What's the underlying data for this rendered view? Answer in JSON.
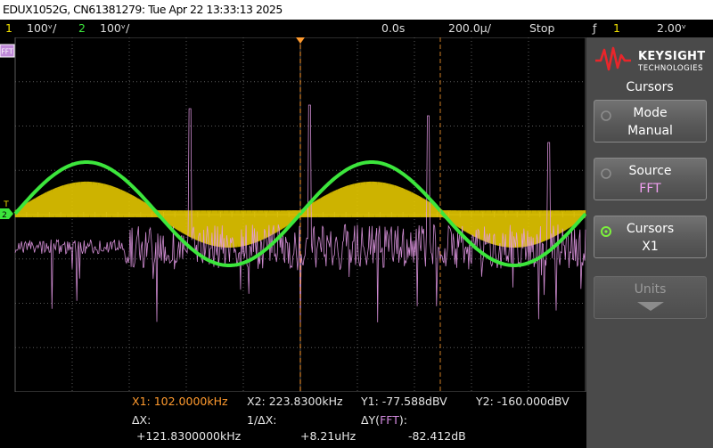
{
  "title": "EDUX1052G, CN61381279: Tue Apr 22 13:33:13 2025",
  "status": {
    "ch1_num": "1",
    "ch1_scale": "100ᵛ/",
    "ch2_num": "2",
    "ch2_scale": "100ᵛ/",
    "time_delay": "0.0s",
    "time_scale": "200.0µ/",
    "run_state": "Stop",
    "trigger_icon": "ƒ",
    "trigger_ch": "1",
    "trigger_level": "2.00ᵛ"
  },
  "screen": {
    "fft_marker": "FFT",
    "ch2_marker": "2",
    "trigger_marker": "T",
    "colors": {
      "ch1": "#e3c600",
      "ch2": "#3ce63c",
      "fft": "#e79be9",
      "cursor": "#ff9a2e",
      "grid": "#5a5a5a"
    }
  },
  "readout": {
    "x1": "X1:  102.0000kHz",
    "x2": "X2:  223.8300kHz",
    "y1": "Y1: -77.588dBV",
    "y2": "Y2: -160.000dBV",
    "dx_label": "ΔX:",
    "dx_value": "+121.8300000kHz",
    "inv_dx_label": "1/ΔX:",
    "inv_dx_value": "+8.21uHz",
    "dy_label_prefix": "ΔY(",
    "dy_label_src": "FFT",
    "dy_label_suffix": "):",
    "dy_value": "-82.412dB"
  },
  "panel": {
    "brand": "KEYSIGHT",
    "brand_sub": "TECHNOLOGIES",
    "menu_title": "Cursors",
    "softkeys": [
      {
        "label": "Mode",
        "value": "Manual"
      },
      {
        "label": "Source",
        "value": "FFT"
      },
      {
        "label": "Cursors",
        "value": "X1"
      },
      {
        "label": "Units",
        "value": ""
      }
    ]
  }
}
